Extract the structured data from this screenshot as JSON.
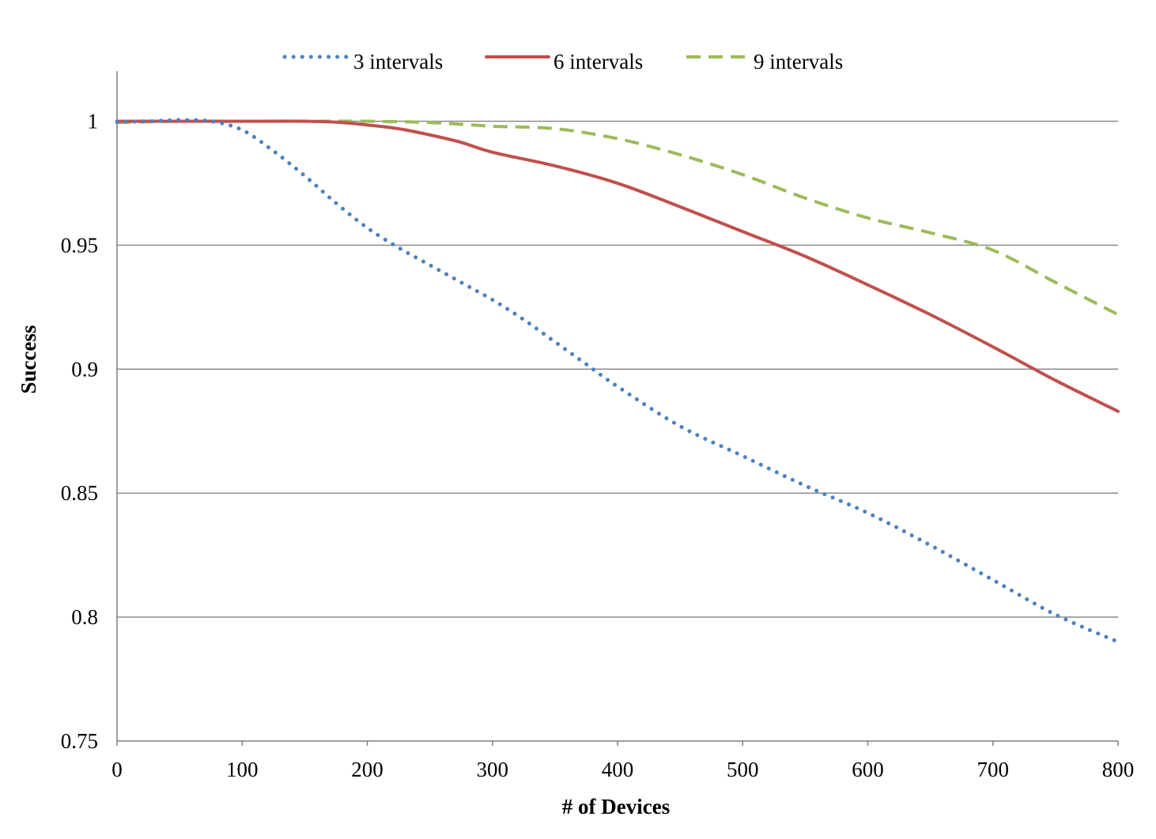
{
  "chart_data": {
    "type": "line",
    "xlabel": "# of Devices",
    "ylabel": "Success",
    "xlim": [
      0,
      800
    ],
    "ylim": [
      0.75,
      1.02
    ],
    "x_ticks": [
      "0",
      "100",
      "200",
      "300",
      "400",
      "500",
      "600",
      "700",
      "800"
    ],
    "y_ticks": [
      "0.75",
      "0.8",
      "0.85",
      "0.9",
      "0.95",
      "1"
    ],
    "grid": "horizontal",
    "legend": "top",
    "series": [
      {
        "name": "3 intervals",
        "color": "#4f81bd",
        "dash": "dotted",
        "points": [
          [
            0,
            0.9997
          ],
          [
            25,
            1.0
          ],
          [
            50,
            1.0005
          ],
          [
            75,
            1.0
          ],
          [
            100,
            0.9965
          ],
          [
            125,
            0.988
          ],
          [
            150,
            0.978
          ],
          [
            175,
            0.967
          ],
          [
            200,
            0.957
          ],
          [
            225,
            0.949
          ],
          [
            250,
            0.942
          ],
          [
            275,
            0.935
          ],
          [
            300,
            0.928
          ],
          [
            325,
            0.92
          ],
          [
            350,
            0.911
          ],
          [
            375,
            0.902
          ],
          [
            400,
            0.893
          ],
          [
            450,
            0.877
          ],
          [
            500,
            0.865
          ],
          [
            550,
            0.853
          ],
          [
            600,
            0.842
          ],
          [
            650,
            0.829
          ],
          [
            700,
            0.815
          ],
          [
            750,
            0.801
          ],
          [
            800,
            0.79
          ]
        ]
      },
      {
        "name": "6 intervals",
        "color": "#c0504d",
        "dash": "solid",
        "points": [
          [
            0,
            1.0
          ],
          [
            50,
            1.0
          ],
          [
            100,
            1.0
          ],
          [
            150,
            1.0
          ],
          [
            180,
            0.9995
          ],
          [
            200,
            0.9985
          ],
          [
            225,
            0.997
          ],
          [
            250,
            0.9945
          ],
          [
            275,
            0.9915
          ],
          [
            300,
            0.9875
          ],
          [
            350,
            0.982
          ],
          [
            400,
            0.975
          ],
          [
            450,
            0.9655
          ],
          [
            500,
            0.9555
          ],
          [
            550,
            0.9455
          ],
          [
            600,
            0.934
          ],
          [
            650,
            0.922
          ],
          [
            700,
            0.909
          ],
          [
            750,
            0.8955
          ],
          [
            800,
            0.883
          ]
        ]
      },
      {
        "name": "9 intervals",
        "color": "#9bbb59",
        "dash": "dashed",
        "points": [
          [
            0,
            0.9995
          ],
          [
            50,
            1.0
          ],
          [
            100,
            1.0
          ],
          [
            150,
            1.0
          ],
          [
            200,
            1.0
          ],
          [
            250,
            0.9995
          ],
          [
            300,
            0.998
          ],
          [
            350,
            0.997
          ],
          [
            400,
            0.993
          ],
          [
            450,
            0.9865
          ],
          [
            500,
            0.9785
          ],
          [
            550,
            0.969
          ],
          [
            600,
            0.961
          ],
          [
            650,
            0.955
          ],
          [
            700,
            0.948
          ],
          [
            750,
            0.935
          ],
          [
            800,
            0.922
          ]
        ]
      }
    ]
  }
}
